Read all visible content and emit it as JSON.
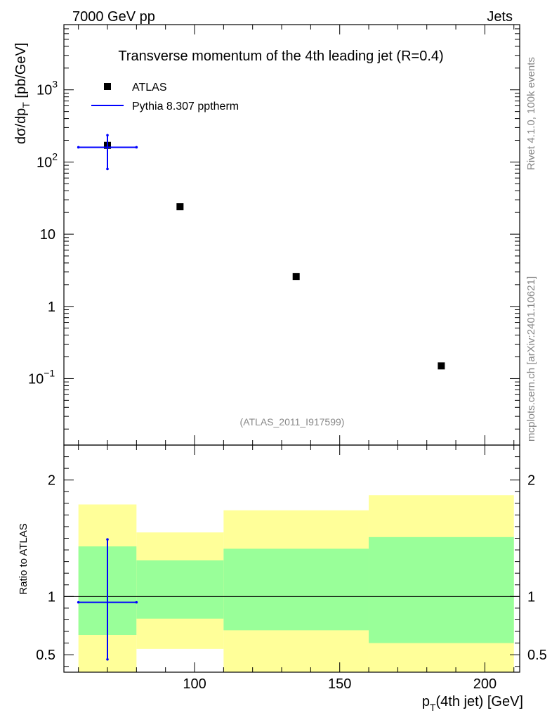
{
  "header": {
    "left": "7000 GeV pp",
    "right": "Jets"
  },
  "side": {
    "rivet": "Rivet 4.1.0,  100k events",
    "mcplots": "mcplots.cern.ch [arXiv:2401.10621]"
  },
  "colors": {
    "atlas": "#000000",
    "pythia": "#0000ff",
    "band_inner": "#99ff99",
    "band_outer": "#ffff99"
  },
  "chart_data": [
    {
      "type": "scatter",
      "title": "Transverse momentum of the 4th leading jet (R=0.4)",
      "ylabel_main": "dσ/dp",
      "ylabel_sub": "T",
      "ylabel_unit": " [pb/GeV]",
      "yscale": "log",
      "ylim": [
        0.012,
        8000
      ],
      "xlim": [
        55,
        212
      ],
      "y_ticks": [
        {
          "value": 0.1,
          "base": "10",
          "exp": "−1"
        },
        {
          "value": 1,
          "base": "1",
          "exp": ""
        },
        {
          "value": 10,
          "base": "10",
          "exp": ""
        },
        {
          "value": 100,
          "base": "10",
          "exp": "2"
        },
        {
          "value": 1000,
          "base": "10",
          "exp": "3"
        }
      ],
      "annotation": "(ATLAS_2011_I917599)",
      "legend": [
        "ATLAS",
        "Pythia 8.307 pptherm"
      ],
      "series": [
        {
          "name": "ATLAS",
          "x": [
            70,
            95,
            135,
            185
          ],
          "y": [
            170,
            24,
            2.6,
            0.15
          ]
        },
        {
          "name": "Pythia 8.307 pptherm",
          "x": [
            70
          ],
          "y": [
            160
          ],
          "xerr_low": [
            60
          ],
          "xerr_high": [
            80
          ],
          "yerr_low": [
            80
          ],
          "yerr_high": [
            235
          ]
        }
      ]
    },
    {
      "type": "area",
      "ylabel": "Ratio to ATLAS",
      "xlabel_main": "p",
      "xlabel_sub": "T",
      "xlabel_rest": "(4th jet) [GeV]",
      "ylim": [
        0.35,
        2.3
      ],
      "xlim": [
        55,
        212
      ],
      "x_ticks": [
        100,
        150,
        200
      ],
      "y_ticks": [
        0.5,
        1,
        2
      ],
      "y_tick_labels": [
        "0.5",
        "1",
        "2"
      ],
      "bins": [
        {
          "low": 60,
          "high": 80,
          "inner": [
            0.67,
            1.43
          ],
          "outer": [
            0.35,
            1.79
          ]
        },
        {
          "low": 80,
          "high": 110,
          "inner": [
            0.81,
            1.31
          ],
          "outer": [
            0.55,
            1.55
          ]
        },
        {
          "low": 110,
          "high": 160,
          "inner": [
            0.71,
            1.41
          ],
          "outer": [
            0.35,
            1.74
          ]
        },
        {
          "low": 160,
          "high": 210,
          "inner": [
            0.6,
            1.51
          ],
          "outer": [
            0.35,
            1.87
          ]
        }
      ],
      "pythia_ratio": {
        "x": 70,
        "y": 0.95,
        "xlow": 60,
        "xhigh": 80,
        "ylow": 0.46,
        "yhigh": 1.49
      }
    }
  ]
}
